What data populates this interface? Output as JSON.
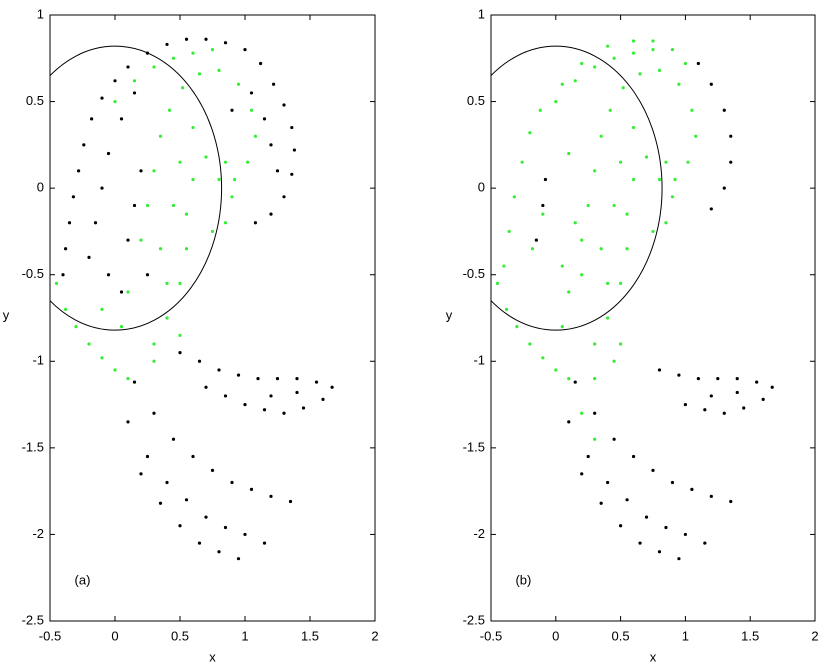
{
  "chart_data": [
    {
      "type": "scatter",
      "xlabel": "x",
      "ylabel": "y",
      "annotation": "(a)",
      "annotation_at": [
        -0.25,
        -2.27
      ],
      "xlim": [
        -0.5,
        2
      ],
      "ylim": [
        -2.5,
        1
      ],
      "xticks": [
        -0.5,
        0,
        0.5,
        1,
        1.5,
        2
      ],
      "yticks": [
        -2.5,
        -2,
        -1.5,
        -1,
        -0.5,
        0,
        0.5,
        1
      ],
      "circle": {
        "cx": 0,
        "cy": 0,
        "r": 0.82,
        "color": "#000000"
      },
      "series": [
        {
          "color": "#000000",
          "x": [
            -0.4,
            -0.38,
            -0.35,
            -0.32,
            -0.28,
            -0.24,
            -0.18,
            -0.1,
            0,
            0.1,
            0.25,
            0.4,
            0.55,
            0.7,
            0.85,
            1.0,
            1.12,
            1.22,
            1.3,
            1.36,
            1.38,
            1.36,
            1.3,
            1.2,
            1.08,
            -0.2,
            -0.15,
            -0.1,
            -0.05,
            0.05,
            0.15,
            0.1,
            0.15,
            0.2,
            0.25,
            0.05,
            -0.05,
            1.05,
            1.15,
            1.2,
            1.25,
            0.9,
            0.15,
            0.3,
            0.45,
            0.6,
            0.75,
            0.9,
            1.05,
            1.2,
            1.35,
            0.1,
            0.25,
            0.4,
            0.55,
            0.7,
            0.85,
            1.0,
            1.15,
            0.2,
            0.35,
            0.5,
            0.65,
            0.8,
            0.95,
            0.5,
            0.65,
            0.8,
            0.95,
            1.1,
            1.25,
            1.4,
            1.55,
            1.67,
            1.6,
            1.45,
            1.3,
            1.15,
            1.0,
            0.85,
            0.7,
            1.2,
            1.4
          ],
          "values": [
            -0.5,
            -0.35,
            -0.2,
            -0.05,
            0.1,
            0.25,
            0.4,
            0.52,
            0.62,
            0.7,
            0.78,
            0.83,
            0.86,
            0.86,
            0.84,
            0.8,
            0.72,
            0.6,
            0.48,
            0.35,
            0.22,
            0.08,
            -0.05,
            -0.15,
            -0.2,
            -0.4,
            -0.2,
            0,
            0.2,
            0.4,
            0.55,
            -0.3,
            -0.1,
            0.1,
            -0.5,
            -0.6,
            -0.5,
            0.55,
            0.4,
            0.25,
            0.1,
            0.45,
            -1.12,
            -1.3,
            -1.45,
            -1.55,
            -1.63,
            -1.7,
            -1.74,
            -1.78,
            -1.81,
            -1.35,
            -1.55,
            -1.7,
            -1.8,
            -1.9,
            -1.96,
            -2.0,
            -2.05,
            -1.65,
            -1.82,
            -1.95,
            -2.05,
            -2.1,
            -2.14,
            -0.95,
            -1.0,
            -1.05,
            -1.08,
            -1.1,
            -1.1,
            -1.1,
            -1.12,
            -1.15,
            -1.22,
            -1.27,
            -1.3,
            -1.28,
            -1.25,
            -1.2,
            -1.15,
            -1.2,
            -1.18
          ]
        },
        {
          "color": "#33ee33",
          "x": [
            -0.45,
            -0.38,
            -0.3,
            -0.2,
            -0.1,
            0,
            0.1,
            0.05,
            0.1,
            0.2,
            0.25,
            0.3,
            0.35,
            0.42,
            0.52,
            0.65,
            0.8,
            0.95,
            1.05,
            1.08,
            1.02,
            0.92,
            0.8,
            0,
            0.15,
            0.3,
            0.45,
            0.6,
            0.75,
            0.3,
            0.4,
            0.5,
            0.55,
            0.55,
            0.6,
            0.7,
            0.85,
            0.9,
            0.85,
            0.75,
            0.4,
            0.35,
            0.45,
            0.5,
            0.6,
            -0.1,
            0.3,
            0.5
          ],
          "values": [
            -0.55,
            -0.7,
            -0.8,
            -0.9,
            -0.98,
            -1.05,
            -1.1,
            -0.8,
            -0.6,
            -0.3,
            -0.1,
            0.1,
            0.3,
            0.45,
            0.58,
            0.66,
            0.68,
            0.6,
            0.45,
            0.3,
            0.15,
            0.05,
            0.05,
            0.5,
            0.62,
            0.7,
            0.75,
            0.78,
            0.8,
            -0.9,
            -0.75,
            -0.55,
            -0.35,
            -0.15,
            0.05,
            0.18,
            0.15,
            -0.05,
            -0.2,
            -0.25,
            -0.55,
            -0.35,
            -0.1,
            0.15,
            0.35,
            -0.7,
            -1.0,
            -0.85
          ]
        }
      ]
    },
    {
      "type": "scatter",
      "xlabel": "x",
      "ylabel": "y",
      "annotation": "(b)",
      "annotation_at": [
        -0.25,
        -2.27
      ],
      "xlim": [
        -0.5,
        2
      ],
      "ylim": [
        -2.5,
        1
      ],
      "xticks": [
        -0.5,
        0,
        0.5,
        1,
        1.5,
        2
      ],
      "yticks": [
        -2.5,
        -2,
        -1.5,
        -1,
        -0.5,
        0,
        0.5,
        1
      ],
      "circle": {
        "cx": 0,
        "cy": 0,
        "r": 0.82,
        "color": "#000000"
      },
      "series": [
        {
          "color": "#000000",
          "x": [
            1.1,
            1.2,
            1.3,
            1.35,
            1.35,
            1.3,
            1.2,
            -0.1,
            -0.08,
            -0.15,
            0.15,
            0.3,
            0.45,
            0.6,
            0.75,
            0.9,
            1.05,
            1.2,
            1.35,
            0.1,
            0.25,
            0.4,
            0.55,
            0.7,
            0.85,
            1.0,
            1.15,
            0.2,
            0.35,
            0.5,
            0.65,
            0.8,
            0.95,
            0.8,
            0.95,
            1.1,
            1.25,
            1.4,
            1.55,
            1.67,
            1.6,
            1.45,
            1.3,
            1.15,
            1.0,
            1.2,
            1.4
          ],
          "values": [
            0.72,
            0.6,
            0.45,
            0.3,
            0.15,
            0,
            -0.12,
            -0.1,
            0.05,
            -0.3,
            -1.12,
            -1.3,
            -1.45,
            -1.55,
            -1.63,
            -1.7,
            -1.74,
            -1.78,
            -1.81,
            -1.35,
            -1.55,
            -1.7,
            -1.8,
            -1.9,
            -1.96,
            -2.0,
            -2.05,
            -1.65,
            -1.82,
            -1.95,
            -2.05,
            -2.1,
            -2.14,
            -1.05,
            -1.08,
            -1.1,
            -1.1,
            -1.1,
            -1.12,
            -1.15,
            -1.22,
            -1.27,
            -1.3,
            -1.28,
            -1.25,
            -1.2,
            -1.18
          ]
        },
        {
          "color": "#33ee33",
          "x": [
            -0.45,
            -0.38,
            -0.3,
            -0.2,
            -0.1,
            0,
            0.1,
            0.05,
            0.1,
            0.2,
            0.25,
            0.3,
            0.35,
            0.42,
            0.52,
            0.65,
            0.8,
            0.95,
            1.05,
            1.08,
            1.02,
            0.92,
            0.8,
            0,
            0.15,
            0.3,
            0.45,
            0.6,
            0.75,
            0.3,
            0.4,
            0.5,
            0.55,
            0.55,
            0.6,
            0.7,
            0.85,
            0.9,
            0.85,
            0.75,
            0.4,
            0.35,
            0.45,
            0.5,
            0.6,
            -0.4,
            -0.36,
            -0.32,
            -0.26,
            -0.2,
            -0.12,
            0.05,
            0.2,
            0.4,
            0.6,
            0.75,
            0.9,
            1.0,
            -0.18,
            -0.1,
            0.1,
            0.15,
            0.2,
            0.05,
            0.3,
            0.45,
            0.5,
            0.2,
            0.3
          ],
          "values": [
            -0.55,
            -0.7,
            -0.8,
            -0.9,
            -0.98,
            -1.05,
            -1.1,
            -0.8,
            -0.6,
            -0.3,
            -0.1,
            0.1,
            0.3,
            0.45,
            0.58,
            0.66,
            0.68,
            0.6,
            0.45,
            0.3,
            0.15,
            0.05,
            0.05,
            0.5,
            0.62,
            0.7,
            0.75,
            0.78,
            0.8,
            -0.9,
            -0.75,
            -0.55,
            -0.35,
            -0.15,
            0.05,
            0.18,
            0.15,
            -0.05,
            -0.2,
            -0.25,
            -0.55,
            -0.35,
            -0.1,
            0.15,
            0.35,
            -0.45,
            -0.25,
            -0.05,
            0.15,
            0.32,
            0.45,
            0.6,
            0.72,
            0.82,
            0.85,
            0.85,
            0.8,
            0.72,
            -0.35,
            -0.15,
            0.2,
            -0.2,
            -0.5,
            -0.45,
            -1.1,
            -1.0,
            -0.9,
            -1.3,
            -1.45
          ]
        }
      ]
    }
  ]
}
